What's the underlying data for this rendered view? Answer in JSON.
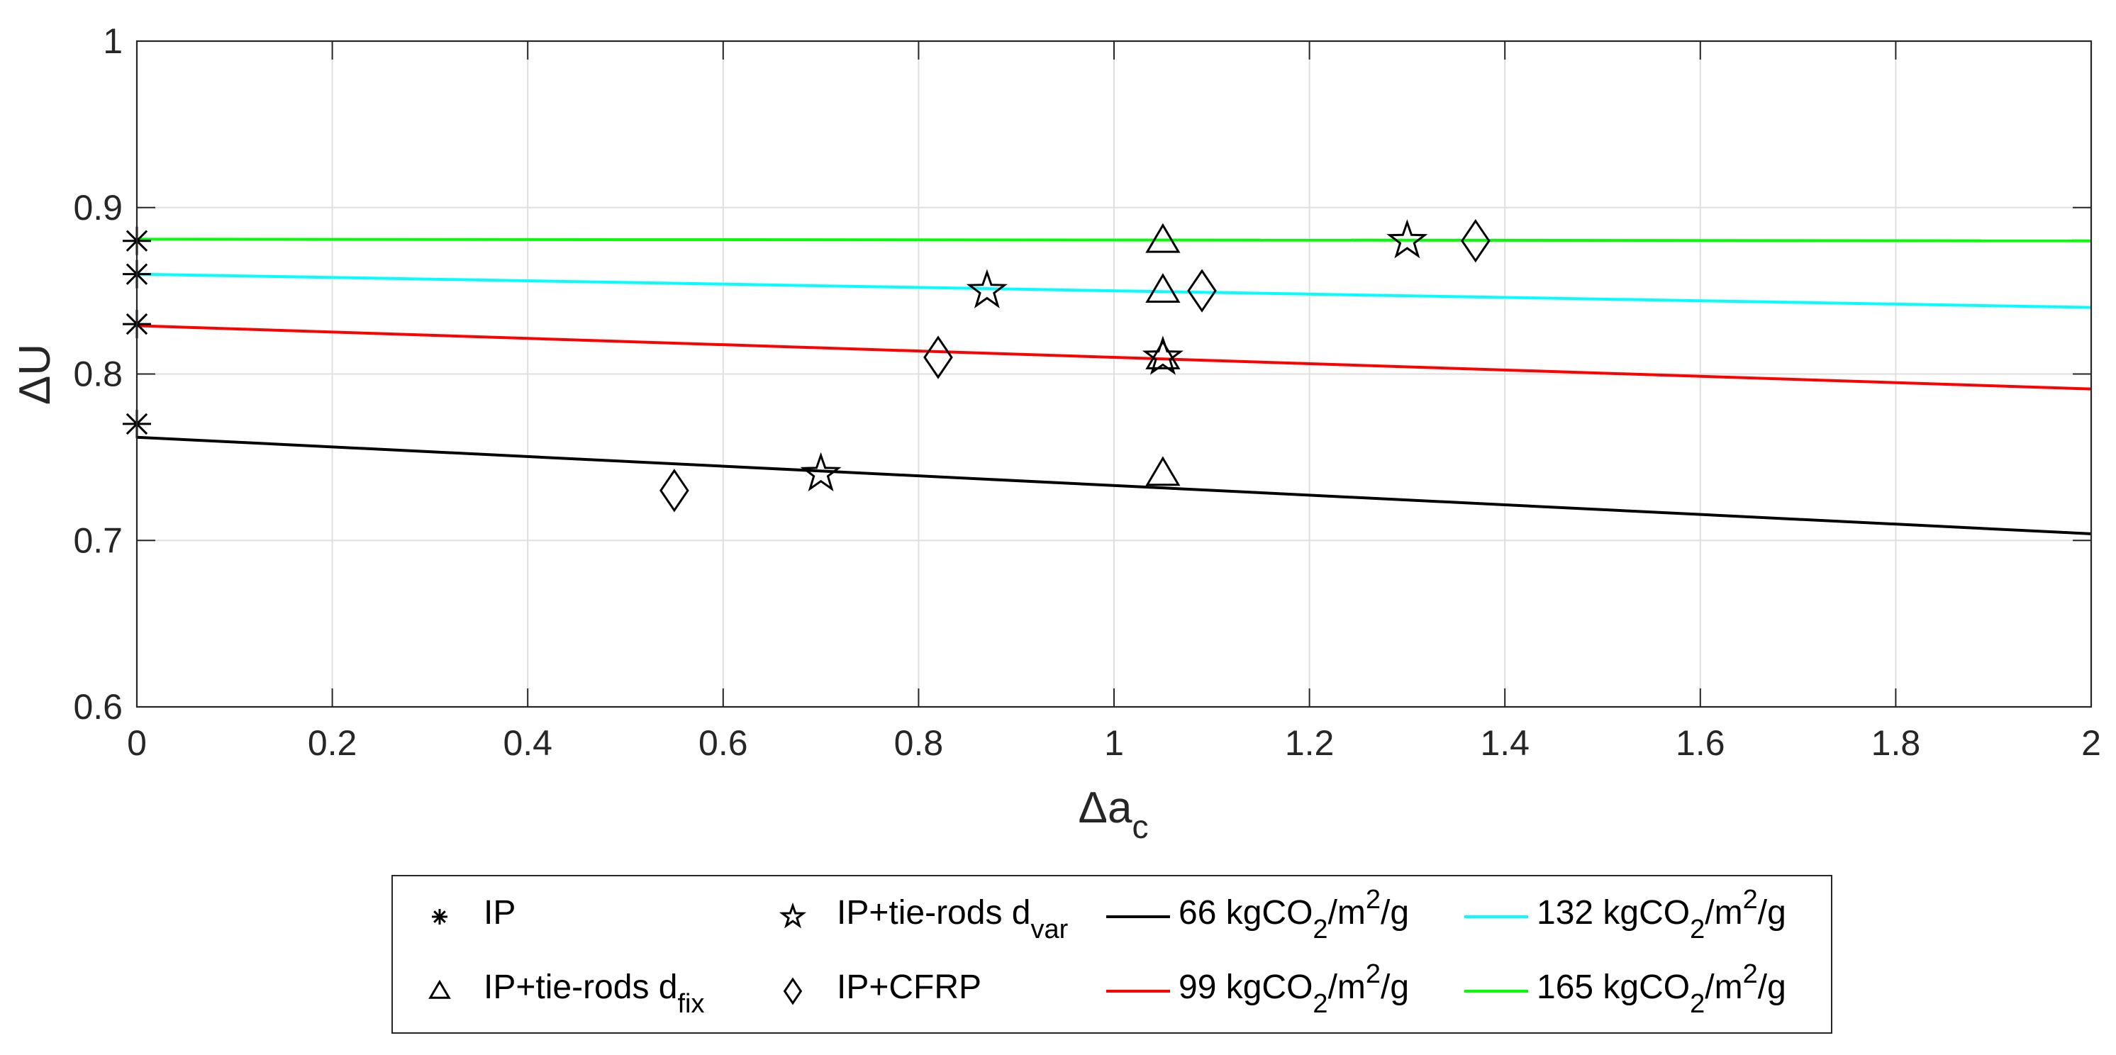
{
  "chart_data": {
    "type": "scatter",
    "xlabel": "Δa",
    "xlabel_sub": "c",
    "ylabel": "ΔU",
    "xlim": [
      0,
      2
    ],
    "ylim": [
      0.6,
      1
    ],
    "xticks": [
      0,
      0.2,
      0.4,
      0.6,
      0.8,
      1,
      1.2,
      1.4,
      1.6,
      1.8,
      2
    ],
    "xtick_labels": [
      "0",
      "0.2",
      "0.4",
      "0.6",
      "0.8",
      "1",
      "1.2",
      "1.4",
      "1.6",
      "1.8",
      "2"
    ],
    "yticks": [
      0.6,
      0.7,
      0.8,
      0.9,
      1
    ],
    "ytick_labels": [
      "0.6",
      "0.7",
      "0.8",
      "0.9",
      "1"
    ],
    "grid": true,
    "legend_position": "bottom-outside",
    "markers": [
      {
        "name": "IP",
        "sub": "",
        "symbol": "asterisk",
        "x": [
          0,
          0,
          0,
          0
        ],
        "y": [
          0.88,
          0.86,
          0.83,
          0.77
        ]
      },
      {
        "name": "IP+tie-rods d",
        "sub": "fix",
        "symbol": "triangle",
        "x": [
          1.05,
          1.05,
          1.05,
          1.05
        ],
        "y": [
          0.88,
          0.85,
          0.81,
          0.74
        ]
      },
      {
        "name": "IP+tie-rods d",
        "sub": "var",
        "symbol": "star",
        "x": [
          0.7,
          0.87,
          1.05,
          1.3
        ],
        "y": [
          0.74,
          0.85,
          0.81,
          0.88
        ]
      },
      {
        "name": "IP+CFRP",
        "sub": "",
        "symbol": "diamond",
        "x": [
          0.55,
          0.82,
          1.09,
          1.37
        ],
        "y": [
          0.73,
          0.81,
          0.85,
          0.88
        ]
      }
    ],
    "lines": [
      {
        "name": "66 kgCO",
        "color": "#000000",
        "x": [
          0,
          2
        ],
        "y": [
          0.762,
          0.704
        ]
      },
      {
        "name": "99 kgCO",
        "color": "#ff0000",
        "x": [
          0,
          2
        ],
        "y": [
          0.829,
          0.791
        ]
      },
      {
        "name": "132 kgCO",
        "color": "#00ffff",
        "x": [
          0,
          2
        ],
        "y": [
          0.86,
          0.84
        ]
      },
      {
        "name": "165 kgCO",
        "color": "#00ff00",
        "x": [
          0,
          2
        ],
        "y": [
          0.881,
          0.88
        ]
      }
    ],
    "line_label_parts": {
      "sub": "2",
      "mid": "/m",
      "sup": "2",
      "end": "/g"
    },
    "legend_order": [
      {
        "kind": "markers",
        "index": 0
      },
      {
        "kind": "markers",
        "index": 2
      },
      {
        "kind": "lines",
        "index": 0
      },
      {
        "kind": "lines",
        "index": 2
      },
      {
        "kind": "markers",
        "index": 1
      },
      {
        "kind": "markers",
        "index": 3
      },
      {
        "kind": "lines",
        "index": 1
      },
      {
        "kind": "lines",
        "index": 3
      }
    ]
  }
}
